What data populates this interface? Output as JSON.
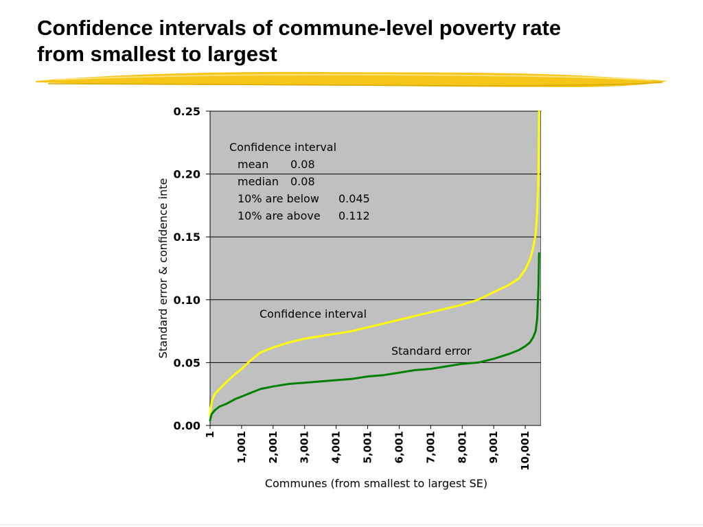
{
  "slide": {
    "title_line1": "Confidence intervals of commune-level poverty rate",
    "title_line2": "from smallest to largest"
  },
  "colors": {
    "plot_background": "#c0c0c0",
    "gridline": "#000000",
    "confidence_interval": "#ffff00",
    "standard_error": "#008000",
    "title_underline": "#f5c518"
  },
  "chart_data": {
    "type": "line",
    "xlabel": "Communes (from smallest to largest SE)",
    "ylabel": "Standard error & confidence inte",
    "xlim": [
      1,
      10500
    ],
    "ylim": [
      0,
      0.25
    ],
    "y_ticks": [
      "0.00",
      "0.05",
      "0.10",
      "0.15",
      "0.20",
      "0.25"
    ],
    "x_ticks": [
      {
        "value": 1,
        "label": "1"
      },
      {
        "value": 1001,
        "label": "1,001"
      },
      {
        "value": 2001,
        "label": "2,001"
      },
      {
        "value": 3001,
        "label": "3,001"
      },
      {
        "value": 4001,
        "label": "4,001"
      },
      {
        "value": 5001,
        "label": "5,001"
      },
      {
        "value": 6001,
        "label": "6,001"
      },
      {
        "value": 7001,
        "label": "7,001"
      },
      {
        "value": 8001,
        "label": "8,001"
      },
      {
        "value": 9001,
        "label": "9,001"
      },
      {
        "value": 10001,
        "label": "10,001"
      }
    ],
    "grid": "horizontal",
    "legend": "none",
    "annotation": {
      "heading": "Confidence interval",
      "lines": [
        {
          "label": "mean",
          "value": "0.08"
        },
        {
          "label": "median",
          "value": "0.08"
        },
        {
          "label": "10% are below",
          "value": "0.045"
        },
        {
          "label": "10% are above",
          "value": "0.112"
        }
      ]
    },
    "series": [
      {
        "name": "Confidence interval",
        "color": "#ffff00",
        "label_at": [
          1600,
          0.089
        ],
        "x": [
          1,
          50,
          150,
          300,
          500,
          800,
          1000,
          1300,
          1600,
          2000,
          2500,
          3000,
          3500,
          4000,
          4500,
          5000,
          5500,
          6000,
          6500,
          7000,
          7500,
          8000,
          8500,
          9000,
          9500,
          9800,
          10000,
          10150,
          10250,
          10330,
          10380,
          10420,
          10440
        ],
        "y": [
          0.008,
          0.019,
          0.025,
          0.029,
          0.034,
          0.041,
          0.045,
          0.052,
          0.058,
          0.062,
          0.066,
          0.069,
          0.071,
          0.073,
          0.075,
          0.078,
          0.081,
          0.084,
          0.087,
          0.09,
          0.093,
          0.096,
          0.1,
          0.106,
          0.112,
          0.117,
          0.124,
          0.132,
          0.141,
          0.152,
          0.17,
          0.2,
          0.25
        ]
      },
      {
        "name": "Standard error",
        "color": "#008000",
        "label_at": [
          5800,
          0.053
        ],
        "x": [
          1,
          50,
          150,
          300,
          500,
          800,
          1000,
          1300,
          1600,
          2000,
          2500,
          3000,
          3500,
          4000,
          4500,
          5000,
          5500,
          6000,
          6500,
          7000,
          7500,
          8000,
          8500,
          9000,
          9500,
          9800,
          10000,
          10150,
          10250,
          10330,
          10380,
          10420,
          10440
        ],
        "y": [
          0.004,
          0.009,
          0.012,
          0.015,
          0.017,
          0.021,
          0.023,
          0.026,
          0.029,
          0.031,
          0.033,
          0.034,
          0.035,
          0.036,
          0.037,
          0.039,
          0.04,
          0.042,
          0.044,
          0.045,
          0.047,
          0.049,
          0.05,
          0.053,
          0.057,
          0.06,
          0.063,
          0.066,
          0.07,
          0.075,
          0.085,
          0.11,
          0.137
        ]
      }
    ]
  }
}
